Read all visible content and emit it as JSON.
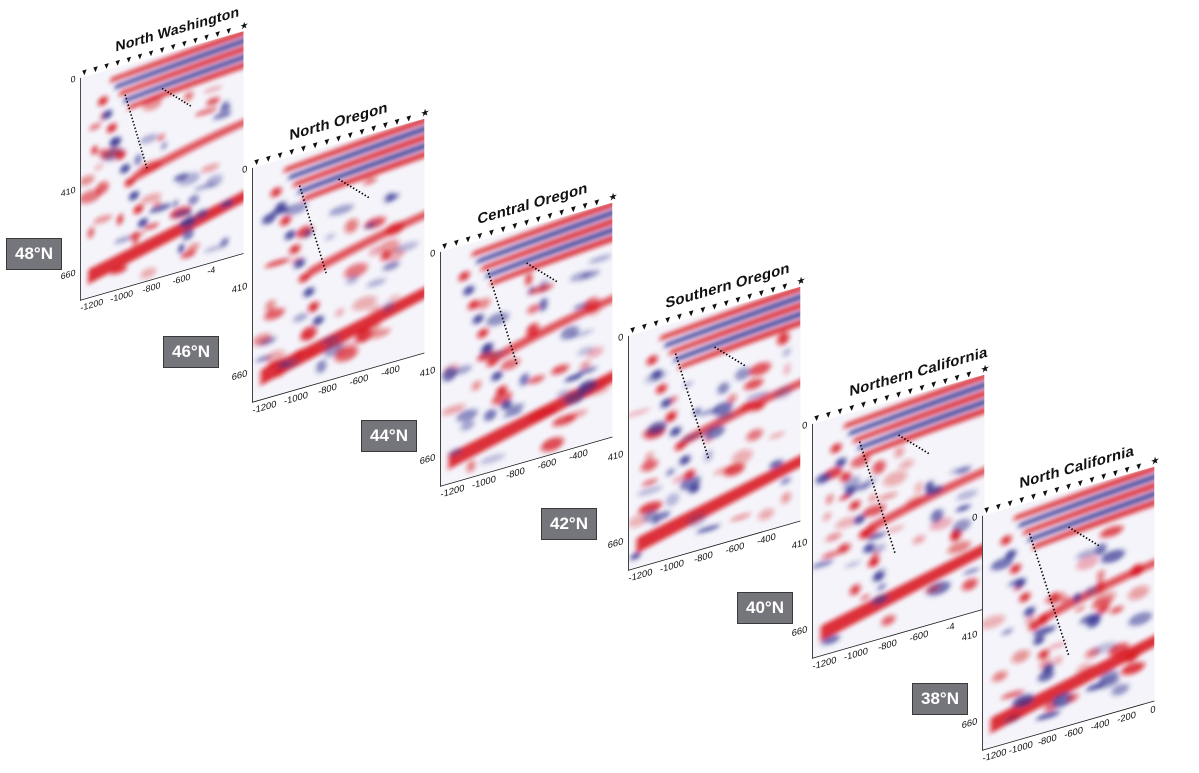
{
  "sections": [
    {
      "title": "North Washington",
      "latitude": "48°N",
      "xticks": [
        "-1200",
        "-1000",
        "-800",
        "-600",
        "-4"
      ],
      "yticks": [
        "0",
        "410",
        "660"
      ]
    },
    {
      "title": "North Oregon",
      "latitude": "46°N",
      "xticks": [
        "-1200",
        "-1000",
        "-800",
        "-600",
        "-400"
      ],
      "yticks": [
        "0",
        "410",
        "660"
      ]
    },
    {
      "title": "Central Oregon",
      "latitude": "44°N",
      "xticks": [
        "-1200",
        "-1000",
        "-800",
        "-600",
        "-400"
      ],
      "yticks": [
        "0",
        "410",
        "660"
      ]
    },
    {
      "title": "Southern Oregon",
      "latitude": "42°N",
      "xticks": [
        "-1200",
        "-1000",
        "-800",
        "-600",
        "-400"
      ],
      "yticks": [
        "0",
        "410",
        "660"
      ]
    },
    {
      "title": "Northern California",
      "latitude": "40°N",
      "xticks": [
        "-1200",
        "-1000",
        "-800",
        "-600",
        "-4"
      ],
      "yticks": [
        "0",
        "410",
        "660"
      ]
    },
    {
      "title": "North California",
      "latitude": "38°N",
      "xticks": [
        "-1200",
        "-1000",
        "-800",
        "-600",
        "-400",
        "-200",
        "0"
      ],
      "yticks": [
        "0",
        "410",
        "660"
      ]
    }
  ],
  "colors": {
    "positive": "#d8131b",
    "negative": "#2f2f8f",
    "frame": "#111111",
    "label_box": "#75757c",
    "label_text": "#ffffff"
  },
  "icons": {
    "station": "station-triangle-icon",
    "trench": "trench-star-icon"
  }
}
